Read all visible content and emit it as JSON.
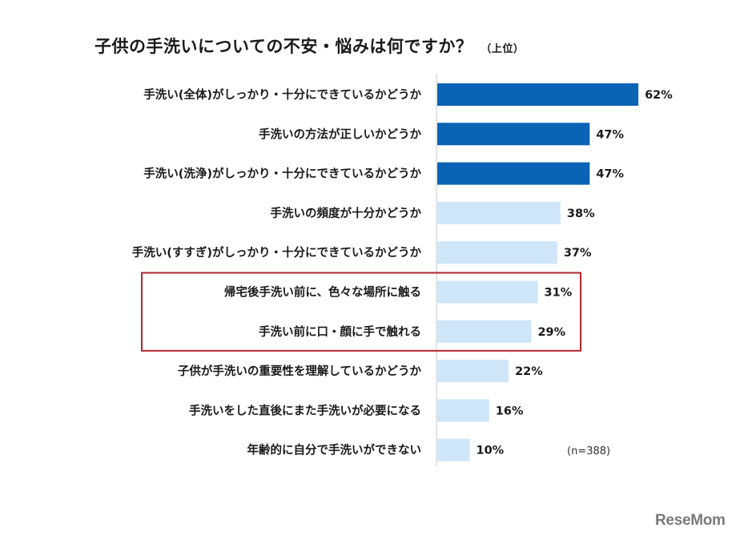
{
  "chart_data": {
    "type": "bar",
    "orientation": "horizontal",
    "title": "子供の手洗いについての不安・悩みは何ですか？",
    "subtitle": "（上位）",
    "categories": [
      "手洗い(全体)がしっかり・十分にできているかどうか",
      "手洗いの方法が正しいかどうか",
      "手洗い(洗浄)がしっかり・十分にできているかどうか",
      "手洗いの頻度が十分かどうか",
      "手洗い(すすぎ)がしっかり・十分にできているかどうか",
      "帰宅後手洗い前に、色々な場所に触る",
      "手洗い前に口・顔に手で触れる",
      "子供が手洗いの重要性を理解しているかどうか",
      "手洗いをした直後にまた手洗いが必要になる",
      "年齢的に自分で手洗いができない"
    ],
    "values": [
      62,
      47,
      47,
      38,
      37,
      31,
      29,
      22,
      16,
      10
    ],
    "value_labels": [
      "62%",
      "47%",
      "47%",
      "38%",
      "37%",
      "31%",
      "29%",
      "22%",
      "16%",
      "10%"
    ],
    "highlight_dark": [
      0,
      1,
      2
    ],
    "boxed": [
      5,
      6
    ],
    "note": "(n=388)",
    "colors": {
      "dark": "#0b63b6",
      "light": "#cfe6f8",
      "box": "#b5252f",
      "axis": "#c8c8c8"
    }
  },
  "logo": "ReseMom"
}
